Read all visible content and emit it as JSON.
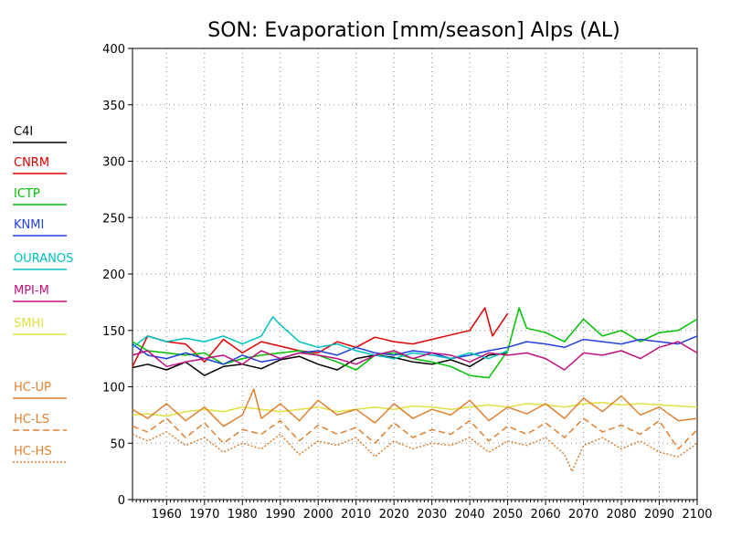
{
  "chart_data": {
    "type": "line",
    "title": "SON: Evaporation [mm/season] Alps (AL)",
    "xlabel": "",
    "ylabel": "",
    "xlim": [
      1951,
      2100
    ],
    "ylim": [
      0,
      400
    ],
    "x_ticks": [
      1960,
      1970,
      1980,
      1990,
      2000,
      2010,
      2020,
      2030,
      2040,
      2050,
      2060,
      2070,
      2080,
      2090,
      2100
    ],
    "x_tick_labels": [
      "1960",
      "1970",
      "1980",
      "1990",
      "2000",
      "2010",
      "2020",
      "2030",
      "2040",
      "2050",
      "2060",
      "2070",
      "2080",
      "2090",
      "2100"
    ],
    "y_ticks": [
      0,
      50,
      100,
      150,
      200,
      250,
      300,
      350,
      400
    ],
    "y_tick_labels": [
      "0",
      "50",
      "100",
      "150",
      "200",
      "250",
      "300",
      "350",
      "400"
    ],
    "grid": true,
    "legend_position": "left",
    "series": [
      {
        "name": "C4I",
        "color": "#000000",
        "style": "solid",
        "x": [
          1951,
          1955,
          1960,
          1965,
          1970,
          1975,
          1980,
          1985,
          1990,
          1995,
          2000,
          2005,
          2010,
          2015,
          2020,
          2025,
          2030,
          2035,
          2040,
          2045,
          2050
        ],
        "y": [
          117,
          120,
          115,
          122,
          110,
          118,
          120,
          116,
          124,
          127,
          120,
          115,
          125,
          128,
          126,
          122,
          120,
          124,
          118,
          128,
          130
        ]
      },
      {
        "name": "CNRM",
        "color": "#e00000",
        "style": "solid",
        "x": [
          1951,
          1955,
          1960,
          1965,
          1970,
          1975,
          1980,
          1985,
          1990,
          1995,
          2000,
          2005,
          2010,
          2015,
          2020,
          2025,
          2030,
          2035,
          2040,
          2044,
          2046,
          2050
        ],
        "y": [
          118,
          145,
          140,
          138,
          122,
          142,
          130,
          140,
          136,
          132,
          130,
          140,
          135,
          144,
          140,
          138,
          142,
          146,
          150,
          170,
          145,
          165
        ]
      },
      {
        "name": "ICTP",
        "color": "#00c000",
        "style": "solid",
        "x": [
          1951,
          1955,
          1960,
          1965,
          1970,
          1975,
          1980,
          1985,
          1990,
          1995,
          2000,
          2005,
          2010,
          2015,
          2020,
          2025,
          2030,
          2035,
          2040,
          2045,
          2050,
          2053,
          2055,
          2060,
          2065,
          2070,
          2075,
          2080,
          2085,
          2090,
          2095,
          2100
        ],
        "y": [
          140,
          132,
          130,
          128,
          130,
          120,
          125,
          128,
          130,
          132,
          128,
          122,
          115,
          128,
          130,
          125,
          122,
          118,
          110,
          108,
          132,
          170,
          152,
          148,
          140,
          160,
          145,
          150,
          140,
          148,
          150,
          160
        ]
      },
      {
        "name": "KNMI",
        "color": "#2040e0",
        "style": "solid",
        "x": [
          1951,
          1955,
          1960,
          1965,
          1970,
          1975,
          1980,
          1985,
          1990,
          1995,
          2000,
          2005,
          2010,
          2015,
          2020,
          2025,
          2030,
          2035,
          2040,
          2045,
          2050,
          2055,
          2060,
          2065,
          2070,
          2075,
          2080,
          2085,
          2090,
          2095,
          2100
        ],
        "y": [
          138,
          128,
          125,
          130,
          125,
          120,
          128,
          122,
          125,
          130,
          132,
          128,
          135,
          130,
          128,
          132,
          130,
          125,
          128,
          132,
          135,
          140,
          138,
          135,
          142,
          140,
          138,
          142,
          140,
          138,
          145
        ]
      },
      {
        "name": "OURANOS",
        "color": "#00c0c0",
        "style": "solid",
        "x": [
          1951,
          1955,
          1960,
          1965,
          1970,
          1975,
          1980,
          1985,
          1988,
          1990,
          1995,
          2000,
          2005,
          2010,
          2015,
          2020,
          2025,
          2030,
          2035,
          2040,
          2045,
          2050
        ],
        "y": [
          135,
          145,
          140,
          143,
          140,
          145,
          138,
          145,
          162,
          155,
          140,
          135,
          138,
          132,
          128,
          125,
          130,
          128,
          125,
          130,
          125,
          132
        ]
      },
      {
        "name": "MPI-M",
        "color": "#c01080",
        "style": "solid",
        "x": [
          1951,
          1955,
          1960,
          1965,
          1970,
          1975,
          1980,
          1985,
          1990,
          1995,
          2000,
          2005,
          2010,
          2015,
          2020,
          2025,
          2030,
          2035,
          2040,
          2045,
          2050,
          2055,
          2060,
          2065,
          2070,
          2075,
          2080,
          2085,
          2090,
          2095,
          2100
        ],
        "y": [
          128,
          132,
          118,
          122,
          125,
          128,
          120,
          132,
          125,
          130,
          128,
          125,
          120,
          128,
          132,
          125,
          130,
          128,
          122,
          130,
          128,
          130,
          125,
          115,
          130,
          128,
          132,
          125,
          135,
          140,
          130
        ]
      },
      {
        "name": "SMHI",
        "color": "#e0e040",
        "style": "solid",
        "x": [
          1951,
          1955,
          1960,
          1965,
          1970,
          1975,
          1980,
          1985,
          1990,
          1995,
          2000,
          2005,
          2010,
          2015,
          2020,
          2025,
          2030,
          2035,
          2040,
          2045,
          2050,
          2055,
          2060,
          2065,
          2070,
          2075,
          2080,
          2085,
          2090,
          2095,
          2100
        ],
        "y": [
          75,
          76,
          74,
          78,
          80,
          78,
          82,
          80,
          78,
          80,
          82,
          78,
          80,
          82,
          80,
          83,
          82,
          80,
          82,
          84,
          82,
          85,
          84,
          82,
          85,
          86,
          84,
          85,
          84,
          83,
          82
        ]
      },
      {
        "name": "HC-UP",
        "color": "#e08030",
        "style": "solid",
        "x": [
          1951,
          1955,
          1960,
          1965,
          1970,
          1975,
          1980,
          1983,
          1985,
          1990,
          1995,
          2000,
          2005,
          2010,
          2015,
          2020,
          2025,
          2030,
          2035,
          2040,
          2045,
          2050,
          2055,
          2060,
          2065,
          2070,
          2075,
          2080,
          2085,
          2090,
          2095,
          2100
        ],
        "y": [
          80,
          72,
          85,
          70,
          82,
          65,
          75,
          98,
          72,
          85,
          70,
          88,
          75,
          80,
          68,
          85,
          72,
          80,
          75,
          88,
          70,
          82,
          76,
          85,
          72,
          90,
          78,
          92,
          75,
          82,
          70,
          72
        ]
      },
      {
        "name": "HC-LS",
        "color": "#e08030",
        "style": "dashed",
        "x": [
          1951,
          1955,
          1960,
          1965,
          1970,
          1975,
          1980,
          1985,
          1990,
          1995,
          2000,
          2005,
          2010,
          2015,
          2020,
          2025,
          2030,
          2035,
          2040,
          2045,
          2050,
          2055,
          2060,
          2065,
          2070,
          2075,
          2080,
          2085,
          2090,
          2095,
          2100
        ],
        "y": [
          65,
          60,
          72,
          55,
          68,
          50,
          62,
          58,
          70,
          52,
          66,
          58,
          64,
          50,
          68,
          55,
          62,
          58,
          70,
          52,
          65,
          58,
          68,
          55,
          72,
          60,
          66,
          58,
          70,
          45,
          62
        ]
      },
      {
        "name": "HC-HS",
        "color": "#e08030",
        "style": "dotted",
        "x": [
          1951,
          1955,
          1960,
          1965,
          1970,
          1975,
          1980,
          1985,
          1990,
          1995,
          2000,
          2005,
          2010,
          2015,
          2020,
          2025,
          2030,
          2035,
          2040,
          2045,
          2050,
          2055,
          2060,
          2065,
          2067,
          2070,
          2075,
          2080,
          2085,
          2090,
          2095,
          2100
        ],
        "y": [
          58,
          52,
          60,
          48,
          55,
          42,
          50,
          45,
          58,
          40,
          52,
          48,
          55,
          38,
          52,
          45,
          50,
          48,
          55,
          42,
          52,
          48,
          55,
          40,
          25,
          48,
          55,
          45,
          52,
          42,
          38,
          50
        ]
      }
    ]
  }
}
